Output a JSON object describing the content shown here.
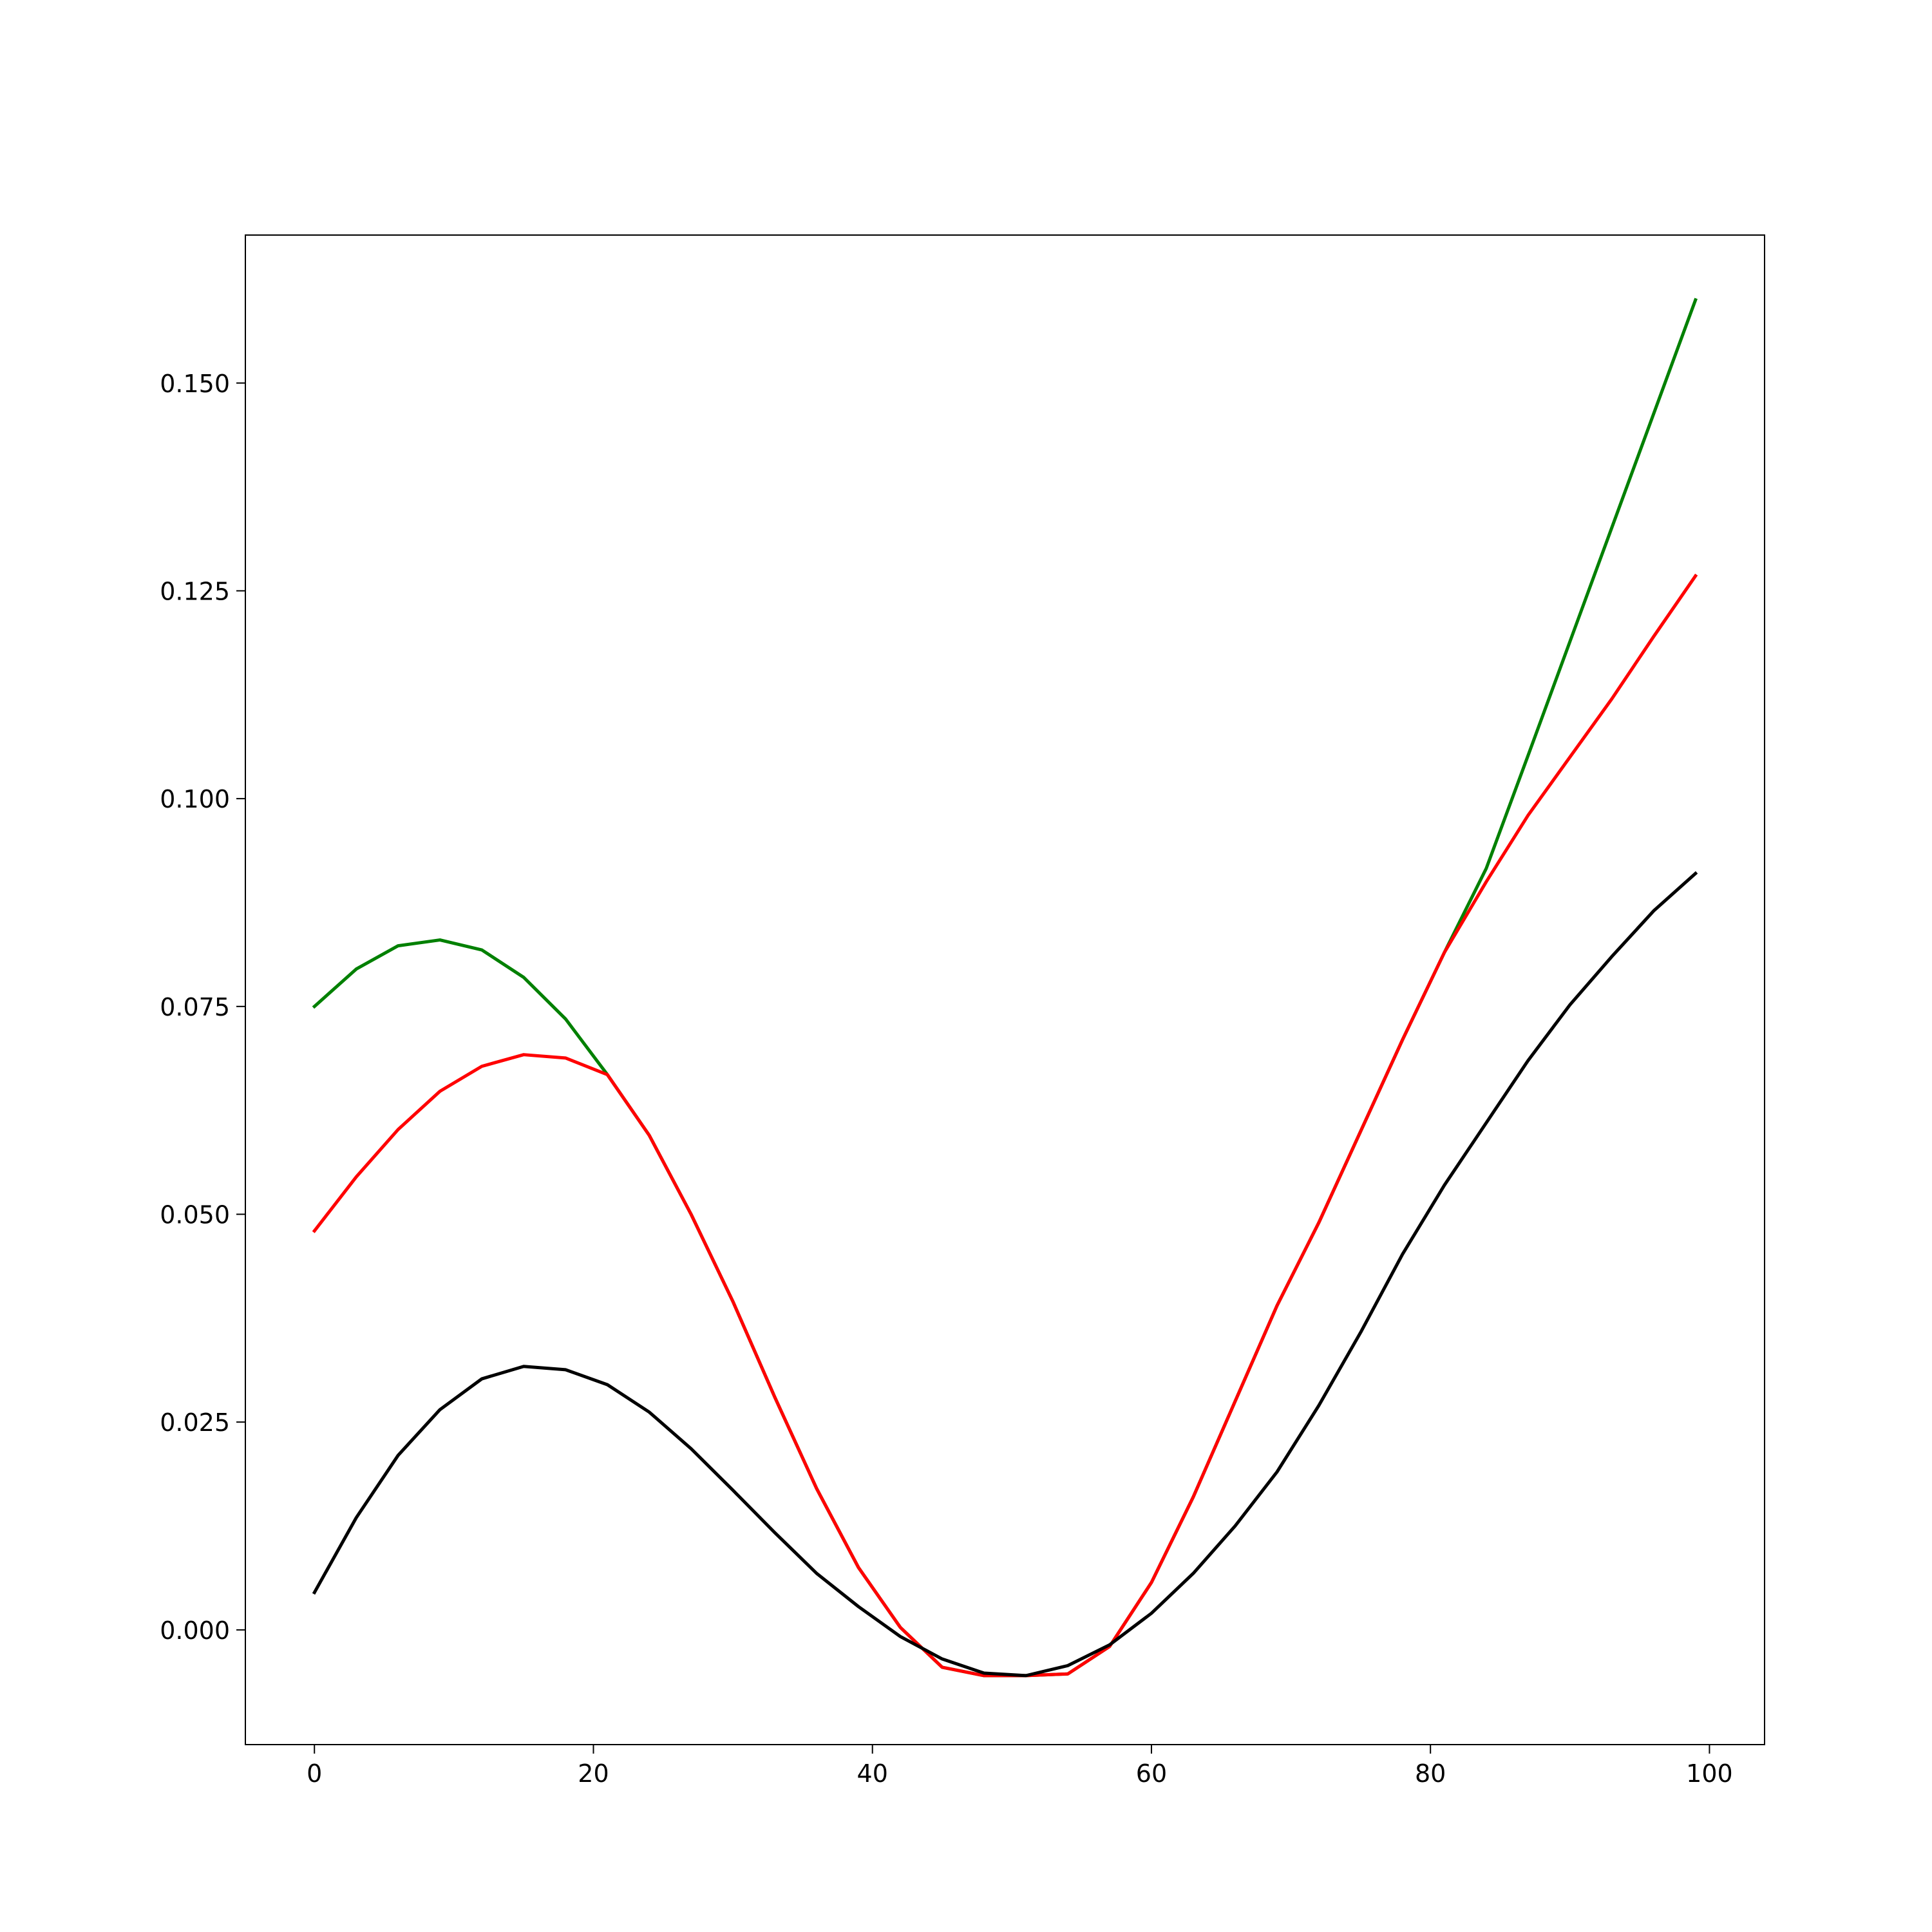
{
  "chart_data": {
    "type": "line",
    "x": [
      0,
      3,
      6,
      9,
      12,
      15,
      18,
      21,
      24,
      27,
      30,
      33,
      36,
      39,
      42,
      45,
      48,
      51,
      54,
      57,
      60,
      63,
      66,
      69,
      72,
      75,
      78,
      81,
      84,
      87,
      90,
      93,
      96,
      99
    ],
    "series": [
      {
        "color": "#008000",
        "values": [
          0.075,
          0.0795,
          0.0823,
          0.083,
          0.0818,
          0.0785,
          0.0735,
          0.0668,
          0.0595,
          0.05,
          0.0395,
          0.028,
          0.017,
          0.0075,
          0.0003,
          -0.0045,
          -0.0055,
          -0.0055,
          -0.0053,
          -0.002,
          0.0057,
          0.016,
          0.0275,
          0.039,
          0.049,
          0.06,
          0.071,
          0.0815,
          0.0916,
          0.1052,
          0.1189,
          0.1326,
          0.1463,
          0.16
        ]
      },
      {
        "color": "#ff0000",
        "values": [
          0.048,
          0.0545,
          0.0602,
          0.0648,
          0.0678,
          0.0692,
          0.0688,
          0.0668,
          0.0595,
          0.05,
          0.0395,
          0.028,
          0.017,
          0.0075,
          0.0003,
          -0.0045,
          -0.0055,
          -0.0055,
          -0.0053,
          -0.002,
          0.0057,
          0.016,
          0.0275,
          0.039,
          0.049,
          0.06,
          0.071,
          0.0815,
          0.09,
          0.098,
          0.105,
          0.112,
          0.1195,
          0.1268
        ]
      },
      {
        "color": "#000000",
        "values": [
          0.0045,
          0.0135,
          0.021,
          0.0265,
          0.0302,
          0.0317,
          0.0313,
          0.0295,
          0.0262,
          0.0218,
          0.0168,
          0.0117,
          0.0068,
          0.0028,
          -0.0008,
          -0.0035,
          -0.0052,
          -0.0055,
          -0.0043,
          -0.0018,
          0.002,
          0.0068,
          0.0125,
          0.019,
          0.027,
          0.0358,
          0.0452,
          0.0535,
          0.061,
          0.0685,
          0.0752,
          0.081,
          0.0865,
          0.091
        ]
      }
    ],
    "xlim": [
      -4.95,
      103.95
    ],
    "xticks": [
      0,
      20,
      40,
      60,
      80,
      100
    ],
    "ylim": [
      -0.0138,
      0.1678
    ],
    "yticks": [
      {
        "value": 0,
        "label": "0.000"
      },
      {
        "value": 0.025,
        "label": "0.025"
      },
      {
        "value": 0.05,
        "label": "0.050"
      },
      {
        "value": 0.075,
        "label": "0.075"
      },
      {
        "value": 0.1,
        "label": "0.100"
      },
      {
        "value": 0.125,
        "label": "0.125"
      },
      {
        "value": 0.15,
        "label": "0.150"
      }
    ],
    "grid": false
  }
}
